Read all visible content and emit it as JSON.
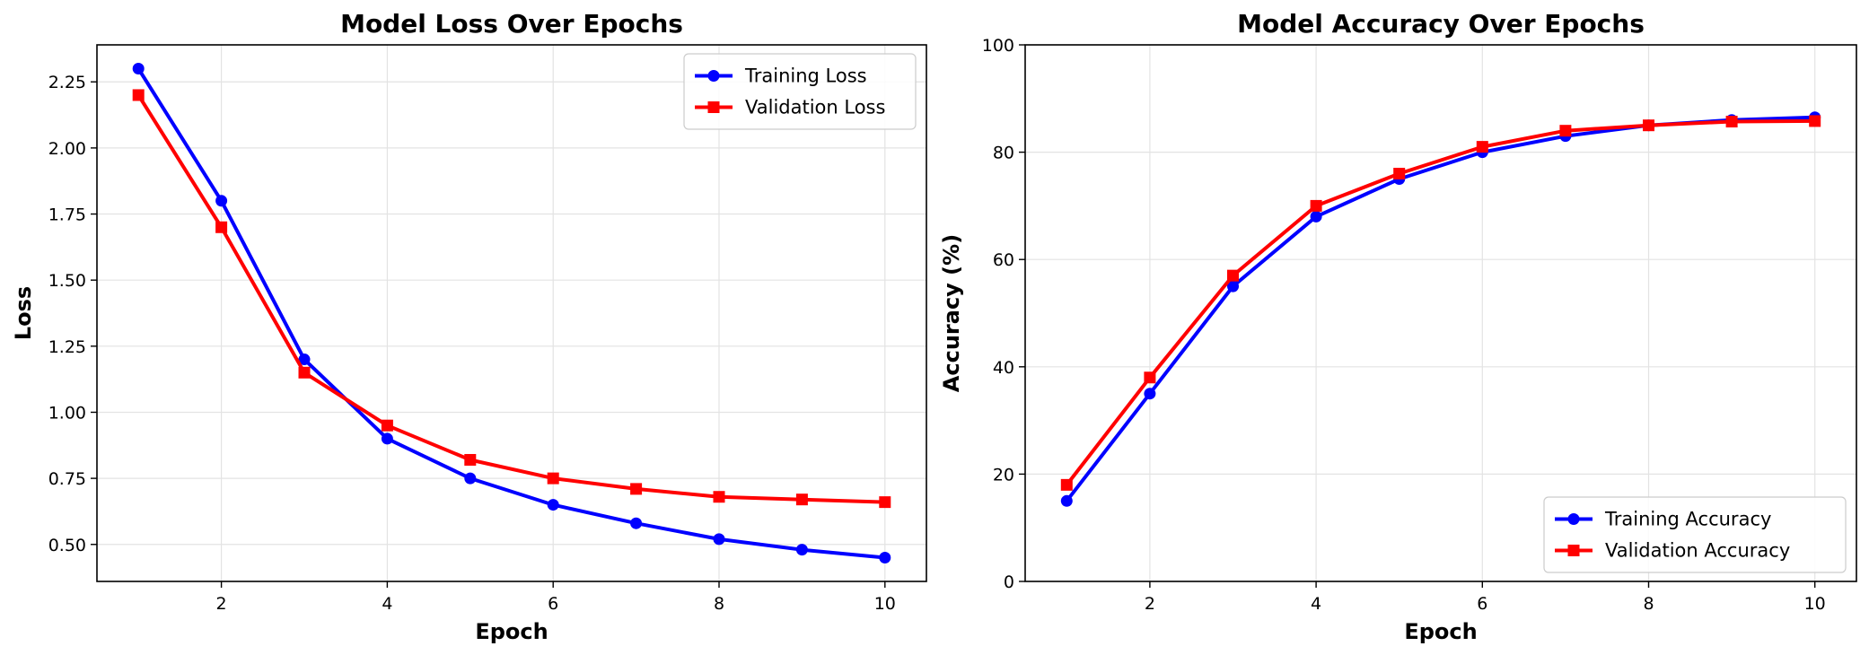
{
  "chart_data": [
    {
      "type": "line",
      "title": "Model Loss Over Epochs",
      "xlabel": "Epoch",
      "ylabel": "Loss",
      "x": [
        1,
        2,
        3,
        4,
        5,
        6,
        7,
        8,
        9,
        10
      ],
      "xlim": [
        0.5,
        10.5
      ],
      "ylim": [
        0.36,
        2.39
      ],
      "xticks": [
        2,
        4,
        6,
        8,
        10
      ],
      "yticks": [
        0.5,
        0.75,
        1.0,
        1.25,
        1.5,
        1.75,
        2.0,
        2.25
      ],
      "xtick_labels": [
        "2",
        "4",
        "6",
        "8",
        "10"
      ],
      "ytick_labels": [
        "0.50",
        "0.75",
        "1.00",
        "1.25",
        "1.50",
        "1.75",
        "2.00",
        "2.25"
      ],
      "grid": true,
      "legend_position": "top-right",
      "series": [
        {
          "name": "Training Loss",
          "color": "#0000ff",
          "marker": "circle",
          "values": [
            2.3,
            1.8,
            1.2,
            0.9,
            0.75,
            0.65,
            0.58,
            0.52,
            0.48,
            0.45
          ]
        },
        {
          "name": "Validation Loss",
          "color": "#ff0000",
          "marker": "square",
          "values": [
            2.2,
            1.7,
            1.15,
            0.95,
            0.82,
            0.75,
            0.71,
            0.68,
            0.67,
            0.66
          ]
        }
      ]
    },
    {
      "type": "line",
      "title": "Model Accuracy Over Epochs",
      "xlabel": "Epoch",
      "ylabel": "Accuracy (%)",
      "x": [
        1,
        2,
        3,
        4,
        5,
        6,
        7,
        8,
        9,
        10
      ],
      "xlim": [
        0.5,
        10.5
      ],
      "ylim": [
        0,
        100
      ],
      "xticks": [
        2,
        4,
        6,
        8,
        10
      ],
      "yticks": [
        0,
        20,
        40,
        60,
        80,
        100
      ],
      "xtick_labels": [
        "2",
        "4",
        "6",
        "8",
        "10"
      ],
      "ytick_labels": [
        "0",
        "20",
        "40",
        "60",
        "80",
        "100"
      ],
      "grid": true,
      "legend_position": "bottom-right",
      "series": [
        {
          "name": "Training Accuracy",
          "color": "#0000ff",
          "marker": "circle",
          "values": [
            15,
            35,
            55,
            68,
            75,
            80,
            83,
            85,
            86,
            86.5
          ]
        },
        {
          "name": "Validation Accuracy",
          "color": "#ff0000",
          "marker": "square",
          "values": [
            18,
            38,
            57,
            70,
            76,
            81,
            84,
            85,
            85.7,
            85.8
          ]
        }
      ]
    }
  ]
}
